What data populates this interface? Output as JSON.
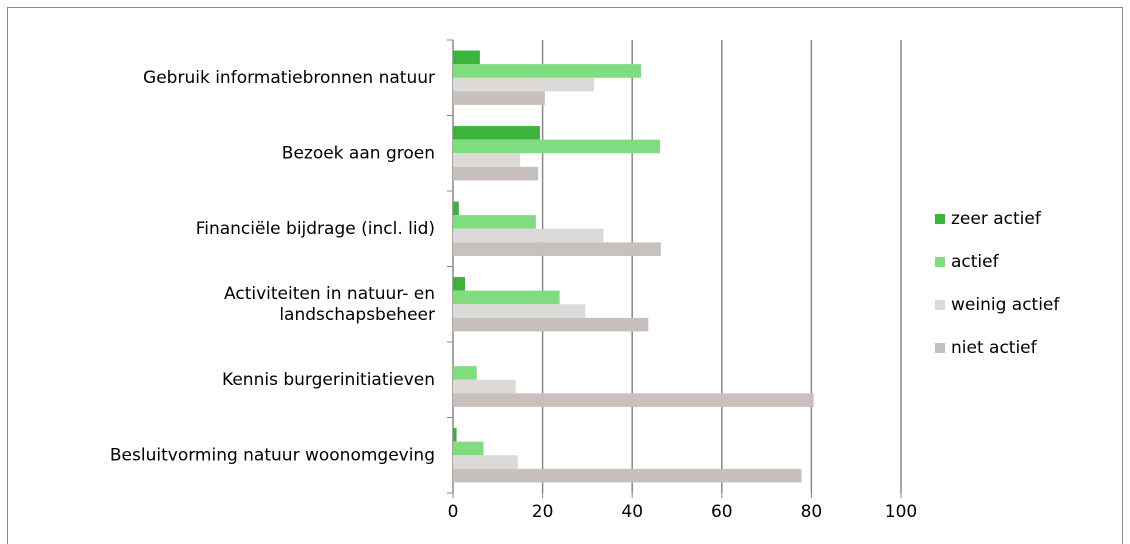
{
  "chart_data": {
    "type": "hbar",
    "categories": [
      "Gebruik informatiebronnen natuur",
      "Bezoek aan groen",
      "Financiële bijdrage (incl. lid)",
      "Activiteiten in natuur- en landschapsbeheer",
      "Kennis burgerinitiatieven",
      "Besluitvorming natuur woonomgeving"
    ],
    "series": [
      {
        "name": "zeer actief",
        "color": "#3cb43c",
        "values": [
          6,
          19.4,
          1.3,
          2.7,
          0,
          0.8
        ]
      },
      {
        "name": "actief",
        "color": "#7fdc7f",
        "values": [
          42,
          46.2,
          18.5,
          23.8,
          5.3,
          6.8
        ]
      },
      {
        "name": "weinig actief",
        "color": "#dcdad8",
        "values": [
          31.5,
          15,
          33.6,
          29.5,
          14,
          14.5
        ]
      },
      {
        "name": "niet actief",
        "color": "#c8c0bc",
        "values": [
          20.5,
          19,
          46.4,
          43.6,
          80.5,
          77.8
        ]
      }
    ],
    "xlim": [
      0,
      100
    ],
    "xticks": [
      0,
      20,
      40,
      60,
      80,
      100
    ],
    "grid": true,
    "legend": "right"
  }
}
